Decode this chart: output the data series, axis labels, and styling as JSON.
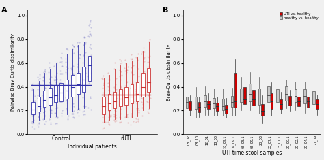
{
  "panel_A": {
    "ylabel": "Pairwise Bray Curtis dissimilarity",
    "xlabel": "Individual patients",
    "ylim": [
      0.0,
      1.05
    ],
    "yticks": [
      0.0,
      0.2,
      0.4,
      0.6,
      0.8,
      1.0
    ],
    "control_color": "#3333aa",
    "ruti_color": "#cc3333",
    "control_line": 0.415,
    "ruti_line": 0.335,
    "n_control": 11,
    "n_ruti": 9,
    "control_boxes": [
      {
        "med": 0.21,
        "q1": 0.17,
        "q3": 0.27,
        "whislo": 0.1,
        "whishi": 0.38
      },
      {
        "med": 0.24,
        "q1": 0.19,
        "q3": 0.32,
        "whislo": 0.12,
        "whishi": 0.45
      },
      {
        "med": 0.29,
        "q1": 0.23,
        "q3": 0.37,
        "whislo": 0.13,
        "whishi": 0.52
      },
      {
        "med": 0.31,
        "q1": 0.25,
        "q3": 0.39,
        "whislo": 0.14,
        "whishi": 0.55
      },
      {
        "med": 0.33,
        "q1": 0.27,
        "q3": 0.41,
        "whislo": 0.15,
        "whishi": 0.6
      },
      {
        "med": 0.35,
        "q1": 0.28,
        "q3": 0.43,
        "whislo": 0.16,
        "whishi": 0.63
      },
      {
        "med": 0.37,
        "q1": 0.3,
        "q3": 0.46,
        "whislo": 0.17,
        "whishi": 0.68
      },
      {
        "med": 0.4,
        "q1": 0.32,
        "q3": 0.5,
        "whislo": 0.19,
        "whishi": 0.72
      },
      {
        "med": 0.42,
        "q1": 0.34,
        "q3": 0.52,
        "whislo": 0.21,
        "whishi": 0.75
      },
      {
        "med": 0.46,
        "q1": 0.36,
        "q3": 0.57,
        "whislo": 0.22,
        "whishi": 0.78
      },
      {
        "med": 0.58,
        "q1": 0.45,
        "q3": 0.66,
        "whislo": 0.25,
        "whishi": 0.91
      }
    ],
    "ruti_boxes": [
      {
        "med": 0.24,
        "q1": 0.17,
        "q3": 0.32,
        "whislo": 0.1,
        "whishi": 0.48
      },
      {
        "med": 0.26,
        "q1": 0.2,
        "q3": 0.34,
        "whislo": 0.12,
        "whishi": 0.5
      },
      {
        "med": 0.28,
        "q1": 0.22,
        "q3": 0.36,
        "whislo": 0.13,
        "whishi": 0.55
      },
      {
        "med": 0.3,
        "q1": 0.24,
        "q3": 0.38,
        "whislo": 0.13,
        "whishi": 0.58
      },
      {
        "med": 0.31,
        "q1": 0.25,
        "q3": 0.4,
        "whislo": 0.14,
        "whishi": 0.6
      },
      {
        "med": 0.32,
        "q1": 0.26,
        "q3": 0.42,
        "whislo": 0.14,
        "whishi": 0.62
      },
      {
        "med": 0.34,
        "q1": 0.28,
        "q3": 0.44,
        "whislo": 0.15,
        "whishi": 0.65
      },
      {
        "med": 0.4,
        "q1": 0.32,
        "q3": 0.52,
        "whislo": 0.2,
        "whishi": 0.7
      },
      {
        "med": 0.44,
        "q1": 0.36,
        "q3": 0.56,
        "whislo": 0.22,
        "whishi": 0.78
      }
    ]
  },
  "panel_B": {
    "ylabel": "Bray-Curtis dissimilarity",
    "xlabel": "UTI time stool samples",
    "ylim": [
      0.0,
      1.05
    ],
    "yticks": [
      0.0,
      0.2,
      0.4,
      0.6,
      0.8,
      1.0
    ],
    "uti_color": "#cc0000",
    "healthy_color": "#c8c8c8",
    "uti_edge": "#333333",
    "healthy_edge": "#555555",
    "legend_uti": "UTI vs. healthy",
    "legend_healthy": "healthy vs. healthy",
    "time_points": [
      "08_02",
      "08_10",
      "12_01",
      "18_00",
      "18_09.1",
      "24_09.1",
      "05_05.1",
      "05_09.1",
      "23_03",
      "23_07.1",
      "15_01.1",
      "20_00.1",
      "20_02.1",
      "20_04.1",
      "20_09"
    ],
    "uti_boxes": [
      {
        "med": 0.245,
        "q1": 0.205,
        "q3": 0.275,
        "whislo": 0.155,
        "whishi": 0.33
      },
      {
        "med": 0.23,
        "q1": 0.185,
        "q3": 0.27,
        "whislo": 0.145,
        "whishi": 0.32
      },
      {
        "med": 0.255,
        "q1": 0.215,
        "q3": 0.285,
        "whislo": 0.165,
        "whishi": 0.345
      },
      {
        "med": 0.235,
        "q1": 0.195,
        "q3": 0.265,
        "whislo": 0.155,
        "whishi": 0.32
      },
      {
        "med": 0.215,
        "q1": 0.175,
        "q3": 0.25,
        "whislo": 0.14,
        "whishi": 0.305
      },
      {
        "med": 0.275,
        "q1": 0.225,
        "q3": 0.52,
        "whislo": 0.155,
        "whishi": 0.63
      },
      {
        "med": 0.295,
        "q1": 0.255,
        "q3": 0.395,
        "whislo": 0.195,
        "whishi": 0.48
      },
      {
        "med": 0.295,
        "q1": 0.245,
        "q3": 0.375,
        "whislo": 0.175,
        "whishi": 0.56
      },
      {
        "med": 0.195,
        "q1": 0.155,
        "q3": 0.255,
        "whislo": 0.095,
        "whishi": 0.33
      },
      {
        "med": 0.275,
        "q1": 0.215,
        "q3": 0.345,
        "whislo": 0.155,
        "whishi": 0.435
      },
      {
        "med": 0.255,
        "q1": 0.215,
        "q3": 0.295,
        "whislo": 0.175,
        "whishi": 0.355
      },
      {
        "med": 0.285,
        "q1": 0.245,
        "q3": 0.325,
        "whislo": 0.195,
        "whishi": 0.375
      },
      {
        "med": 0.275,
        "q1": 0.235,
        "q3": 0.315,
        "whislo": 0.185,
        "whishi": 0.355
      },
      {
        "med": 0.275,
        "q1": 0.225,
        "q3": 0.315,
        "whislo": 0.175,
        "whishi": 0.355
      },
      {
        "med": 0.255,
        "q1": 0.215,
        "q3": 0.295,
        "whislo": 0.165,
        "whishi": 0.335
      }
    ],
    "healthy_boxes": [
      {
        "med": 0.27,
        "q1": 0.22,
        "q3": 0.32,
        "whislo": 0.145,
        "whishi": 0.4
      },
      {
        "med": 0.265,
        "q1": 0.215,
        "q3": 0.315,
        "whislo": 0.14,
        "whishi": 0.395
      },
      {
        "med": 0.28,
        "q1": 0.23,
        "q3": 0.33,
        "whislo": 0.16,
        "whishi": 0.405
      },
      {
        "med": 0.26,
        "q1": 0.22,
        "q3": 0.305,
        "whislo": 0.158,
        "whishi": 0.385
      },
      {
        "med": 0.24,
        "q1": 0.2,
        "q3": 0.3,
        "whislo": 0.155,
        "whishi": 0.385
      },
      {
        "med": 0.27,
        "q1": 0.23,
        "q3": 0.322,
        "whislo": 0.158,
        "whishi": 0.392
      },
      {
        "med": 0.32,
        "q1": 0.27,
        "q3": 0.385,
        "whislo": 0.2,
        "whishi": 0.485
      },
      {
        "med": 0.34,
        "q1": 0.28,
        "q3": 0.425,
        "whislo": 0.2,
        "whishi": 0.525
      },
      {
        "med": 0.3,
        "q1": 0.25,
        "q3": 0.385,
        "whislo": 0.175,
        "whishi": 0.485
      },
      {
        "med": 0.33,
        "q1": 0.27,
        "q3": 0.405,
        "whislo": 0.2,
        "whishi": 0.482
      },
      {
        "med": 0.32,
        "q1": 0.27,
        "q3": 0.382,
        "whislo": 0.198,
        "whishi": 0.462
      },
      {
        "med": 0.34,
        "q1": 0.282,
        "q3": 0.402,
        "whislo": 0.218,
        "whishi": 0.462
      },
      {
        "med": 0.322,
        "q1": 0.27,
        "q3": 0.382,
        "whislo": 0.2,
        "whishi": 0.442
      },
      {
        "med": 0.322,
        "q1": 0.26,
        "q3": 0.382,
        "whislo": 0.182,
        "whishi": 0.442
      },
      {
        "med": 0.302,
        "q1": 0.252,
        "q3": 0.362,
        "whislo": 0.18,
        "whishi": 0.422
      }
    ]
  },
  "bg_color": "#f0f0f0",
  "panel_label_fontsize": 8,
  "axis_fontsize": 5.5,
  "tick_fontsize": 5.0
}
